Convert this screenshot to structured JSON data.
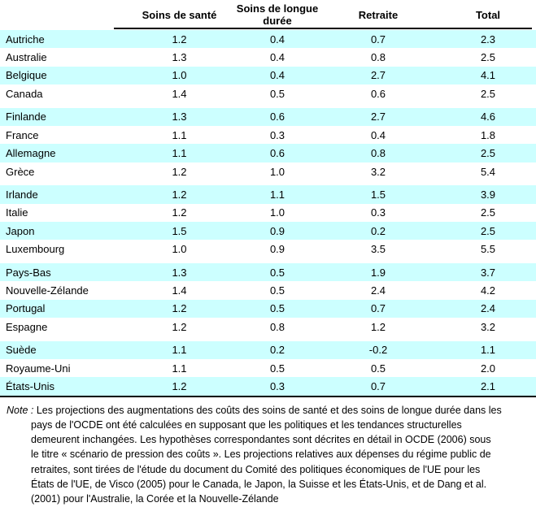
{
  "colors": {
    "row_highlight": "#CCFFFF",
    "text": "#000000",
    "rule": "#000000"
  },
  "table": {
    "headers": [
      "Soins de santé",
      "Soins de longue\ndurée",
      "Retraite",
      "Total"
    ],
    "group_starts": [
      4,
      8,
      12,
      16
    ],
    "rows": [
      {
        "country": "Autriche",
        "values": [
          "1.2",
          "0.4",
          "0.7",
          "2.3"
        ]
      },
      {
        "country": "Australie",
        "values": [
          "1.3",
          "0.4",
          "0.8",
          "2.5"
        ]
      },
      {
        "country": "Belgique",
        "values": [
          "1.0",
          "0.4",
          "2.7",
          "4.1"
        ]
      },
      {
        "country": "Canada",
        "values": [
          "1.4",
          "0.5",
          "0.6",
          "2.5"
        ]
      },
      {
        "country": "Finlande",
        "values": [
          "1.3",
          "0.6",
          "2.7",
          "4.6"
        ]
      },
      {
        "country": "France",
        "values": [
          "1.1",
          "0.3",
          "0.4",
          "1.8"
        ]
      },
      {
        "country": "Allemagne",
        "values": [
          "1.1",
          "0.6",
          "0.8",
          "2.5"
        ]
      },
      {
        "country": "Grèce",
        "values": [
          "1.2",
          "1.0",
          "3.2",
          "5.4"
        ]
      },
      {
        "country": "Irlande",
        "values": [
          "1.2",
          "1.1",
          "1.5",
          "3.9"
        ]
      },
      {
        "country": "Italie",
        "values": [
          "1.2",
          "1.0",
          "0.3",
          "2.5"
        ]
      },
      {
        "country": "Japon",
        "values": [
          "1.5",
          "0.9",
          "0.2",
          "2.5"
        ]
      },
      {
        "country": "Luxembourg",
        "values": [
          "1.0",
          "0.9",
          "3.5",
          "5.5"
        ]
      },
      {
        "country": "Pays-Bas",
        "values": [
          "1.3",
          "0.5",
          "1.9",
          "3.7"
        ]
      },
      {
        "country": "Nouvelle-Zélande",
        "values": [
          "1.4",
          "0.5",
          "2.4",
          "4.2"
        ]
      },
      {
        "country": "Portugal",
        "values": [
          "1.2",
          "0.5",
          "0.7",
          "2.4"
        ]
      },
      {
        "country": "Espagne",
        "values": [
          "1.2",
          "0.8",
          "1.2",
          "3.2"
        ]
      },
      {
        "country": "Suède",
        "values": [
          "1.1",
          "0.2",
          "-0.2",
          "1.1"
        ]
      },
      {
        "country": "Royaume-Uni",
        "values": [
          "1.1",
          "0.5",
          "0.5",
          "2.0"
        ]
      },
      {
        "country": "États-Unis",
        "values": [
          "1.2",
          "0.3",
          "0.7",
          "2.1"
        ]
      }
    ]
  },
  "note": {
    "label": "Note :",
    "lines": [
      "Les projections des augmentations des coûts des soins de santé et des soins de longue durée dans les",
      "pays de l'OCDE ont été calculées en supposant que les politiques et les tendances structurelles",
      "demeurent inchangées. Les hypothèses correspondantes sont décrites en détail in OCDE (2006) sous",
      "le titre  « scénario de pression des coûts ». Les projections relatives aux dépenses du régime public de",
      "retraites, sont tirées de l'étude du document du Comité des politiques économiques de l'UE pour les",
      "États de l'UE, de Visco (2005) pour le Canada, le Japon, la Suisse et les États-Unis, et de Dang et al.",
      "(2001) pour l'Australie, la Corée et la Nouvelle-Zélande"
    ]
  }
}
